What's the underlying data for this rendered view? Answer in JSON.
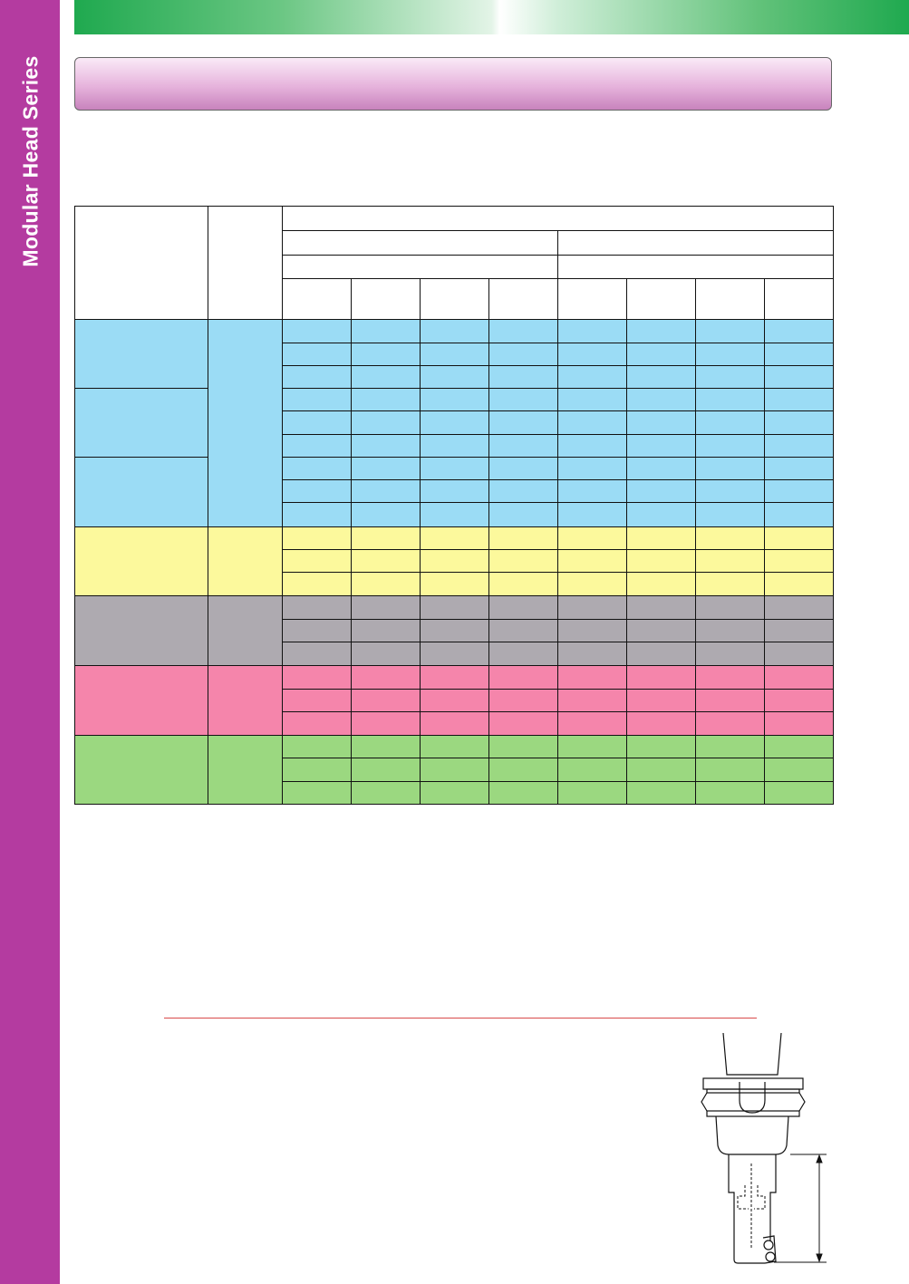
{
  "sidebar": {
    "title": "Modular Head Series"
  },
  "header_banner": {
    "text": ""
  },
  "table": {
    "groups": [
      {
        "name": "blue",
        "color": "#9bdcf5",
        "rows": 9
      },
      {
        "name": "yellow",
        "color": "#fcf99c",
        "rows": 3
      },
      {
        "name": "gray",
        "color": "#aeaab0",
        "rows": 3
      },
      {
        "name": "pink",
        "color": "#f585ab",
        "rows": 3
      },
      {
        "name": "green",
        "color": "#9bd880",
        "rows": 3
      }
    ]
  },
  "colors": {
    "sidebar": "#b43ba0",
    "top_band": "#1fa94f",
    "rule": "#d94a4a"
  },
  "drawing": {
    "icon": "tool-holder-icon"
  }
}
